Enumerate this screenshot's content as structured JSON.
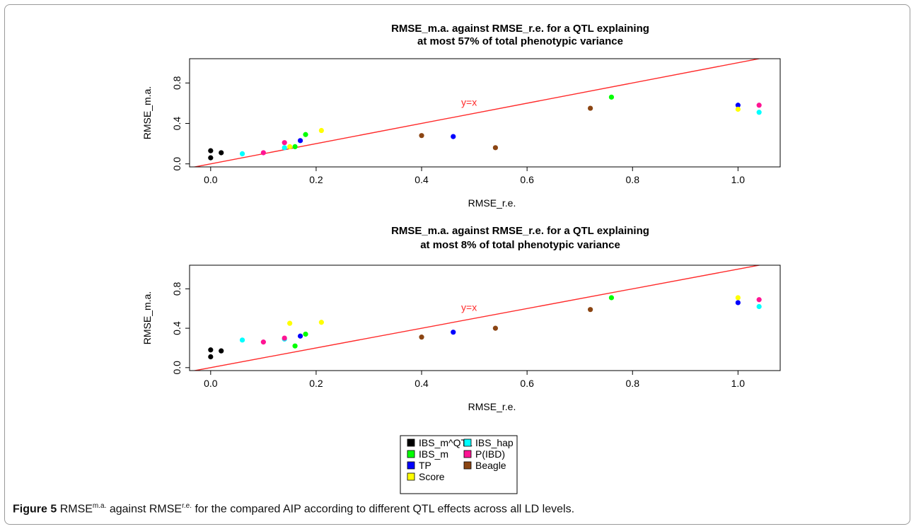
{
  "figure": {
    "caption_label": "Figure 5",
    "caption_rmse1": "RMSE",
    "caption_sup1": "m.a.",
    "caption_mid": " against RMSE",
    "caption_sup2": "r.e.",
    "caption_rest": " for the compared AIP according to different QTL effects across all LD levels."
  },
  "legend": {
    "items": [
      {
        "label": "IBS_m^QTL",
        "color": "#000000"
      },
      {
        "label": "IBS_m",
        "color": "#00ff00"
      },
      {
        "label": "TP",
        "color": "#0000ff"
      },
      {
        "label": "Score",
        "color": "#ffff00"
      },
      {
        "label": "IBS_hap",
        "color": "#00ffff"
      },
      {
        "label": "P(IBD)",
        "color": "#ff1493"
      },
      {
        "label": "Beagle",
        "color": "#8b4513"
      }
    ]
  },
  "chart_data": [
    {
      "type": "scatter",
      "title_line1": "RMSE_m.a. against RMSE_r.e. for a QTL explaining",
      "title_line2": "at most 57% of total phenotypic variance",
      "xlabel": "RMSE_r.e.",
      "ylabel": "RMSE_m.a.",
      "xlim": [
        -0.04,
        1.08
      ],
      "ylim": [
        -0.03,
        1.04
      ],
      "xticks": [
        "0.0",
        "0.2",
        "0.4",
        "0.6",
        "0.8",
        "1.0"
      ],
      "yticks": [
        "0.0",
        "0.4",
        "0.8"
      ],
      "reference_line": {
        "label": "y=x",
        "slope": 1,
        "intercept": 0,
        "color": "#ff2a2a"
      },
      "series": [
        {
          "name": "IBS_m^QTL",
          "color": "#000000",
          "points": [
            [
              0.0,
              0.06
            ],
            [
              0.0,
              0.13
            ],
            [
              0.02,
              0.11
            ]
          ]
        },
        {
          "name": "IBS_m",
          "color": "#00ff00",
          "points": [
            [
              0.16,
              0.17
            ],
            [
              0.18,
              0.29
            ],
            [
              0.76,
              0.66
            ]
          ]
        },
        {
          "name": "TP",
          "color": "#0000ff",
          "points": [
            [
              0.17,
              0.23
            ],
            [
              0.46,
              0.27
            ],
            [
              1.0,
              0.58
            ]
          ]
        },
        {
          "name": "Score",
          "color": "#ffff00",
          "points": [
            [
              0.15,
              0.17
            ],
            [
              0.21,
              0.33
            ],
            [
              1.0,
              0.54
            ]
          ]
        },
        {
          "name": "IBS_hap",
          "color": "#00ffff",
          "points": [
            [
              0.06,
              0.1
            ],
            [
              0.14,
              0.16
            ],
            [
              1.04,
              0.51
            ]
          ]
        },
        {
          "name": "P(IBD)",
          "color": "#ff1493",
          "points": [
            [
              0.1,
              0.11
            ],
            [
              0.14,
              0.21
            ],
            [
              1.04,
              0.58
            ]
          ]
        },
        {
          "name": "Beagle",
          "color": "#8b4513",
          "points": [
            [
              0.4,
              0.28
            ],
            [
              0.54,
              0.16
            ],
            [
              0.72,
              0.55
            ]
          ]
        }
      ]
    },
    {
      "type": "scatter",
      "title_line1": "RMSE_m.a. against RMSE_r.e. for a QTL explaining",
      "title_line2": "at most 8% of total phenotypic variance",
      "xlabel": "RMSE_r.e.",
      "ylabel": "RMSE_m.a.",
      "xlim": [
        -0.04,
        1.08
      ],
      "ylim": [
        -0.03,
        1.04
      ],
      "xticks": [
        "0.0",
        "0.2",
        "0.4",
        "0.6",
        "0.8",
        "1.0"
      ],
      "yticks": [
        "0.0",
        "0.4",
        "0.8"
      ],
      "reference_line": {
        "label": "y=x",
        "slope": 1,
        "intercept": 0,
        "color": "#ff2a2a"
      },
      "series": [
        {
          "name": "IBS_m^QTL",
          "color": "#000000",
          "points": [
            [
              0.0,
              0.11
            ],
            [
              0.0,
              0.18
            ],
            [
              0.02,
              0.17
            ]
          ]
        },
        {
          "name": "IBS_m",
          "color": "#00ff00",
          "points": [
            [
              0.16,
              0.22
            ],
            [
              0.18,
              0.34
            ],
            [
              0.76,
              0.71
            ]
          ]
        },
        {
          "name": "TP",
          "color": "#0000ff",
          "points": [
            [
              0.17,
              0.32
            ],
            [
              0.46,
              0.36
            ],
            [
              1.0,
              0.66
            ]
          ]
        },
        {
          "name": "Score",
          "color": "#ffff00",
          "points": [
            [
              0.15,
              0.45
            ],
            [
              0.21,
              0.46
            ],
            [
              1.0,
              0.71
            ]
          ]
        },
        {
          "name": "IBS_hap",
          "color": "#00ffff",
          "points": [
            [
              0.06,
              0.28
            ],
            [
              0.14,
              0.29
            ],
            [
              1.04,
              0.62
            ]
          ]
        },
        {
          "name": "P(IBD)",
          "color": "#ff1493",
          "points": [
            [
              0.1,
              0.26
            ],
            [
              0.14,
              0.3
            ],
            [
              1.04,
              0.69
            ]
          ]
        },
        {
          "name": "Beagle",
          "color": "#8b4513",
          "points": [
            [
              0.4,
              0.31
            ],
            [
              0.54,
              0.4
            ],
            [
              0.72,
              0.59
            ]
          ]
        }
      ]
    }
  ]
}
